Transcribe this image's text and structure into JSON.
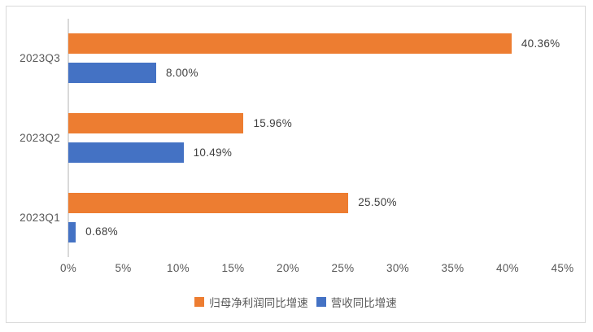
{
  "chart_data": {
    "type": "bar",
    "orientation": "horizontal",
    "title": "",
    "categories": [
      "2023Q3",
      "2023Q2",
      "2023Q1"
    ],
    "series": [
      {
        "name": "归母净利润同比增速",
        "color": "#ED7D31",
        "values": [
          40.36,
          15.96,
          25.5
        ],
        "labels": [
          "40.36%",
          "15.96%",
          "25.50%"
        ]
      },
      {
        "name": "营收同比增速",
        "color": "#4472C4",
        "values": [
          8.0,
          10.49,
          0.68
        ],
        "labels": [
          "8.00%",
          "10.49%",
          "0.68%"
        ]
      }
    ],
    "x_axis": {
      "min": 0,
      "max": 45,
      "tick_step": 5,
      "ticks": [
        "0%",
        "5%",
        "10%",
        "15%",
        "20%",
        "25%",
        "30%",
        "35%",
        "40%",
        "45%"
      ]
    },
    "grid": false,
    "legend_position": "bottom",
    "colors": {
      "border": "#D9D9D9",
      "axis_line": "#D9D9D9",
      "tick_label": "#595959",
      "category_label": "#595959",
      "data_label": "#404040"
    }
  }
}
